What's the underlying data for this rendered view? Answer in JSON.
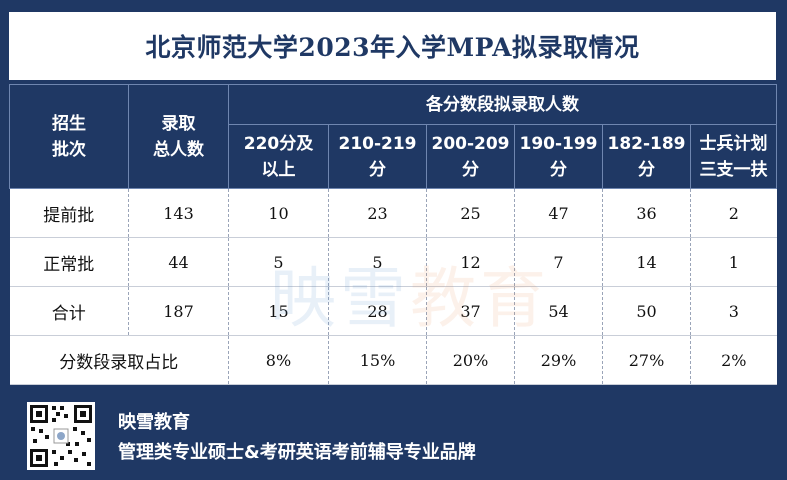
{
  "title": "北京师范大学2023年入学MPA拟录取情况",
  "table": {
    "col_batch_line1": "招生",
    "col_batch_line2": "批次",
    "col_total_line1": "录取",
    "col_total_line2": "总人数",
    "group_header": "各分数段拟录取人数",
    "score_cols": [
      {
        "line1": "220分及",
        "line2": "以上"
      },
      {
        "line1": "210-219",
        "line2": "分"
      },
      {
        "line1": "200-209",
        "line2": "分"
      },
      {
        "line1": "190-199",
        "line2": "分"
      },
      {
        "line1": "182-189",
        "line2": "分"
      },
      {
        "line1": "士兵计划",
        "line2": "三支一扶"
      }
    ],
    "rows": [
      {
        "name": "提前批",
        "total": "143",
        "values": [
          "10",
          "23",
          "25",
          "47",
          "36",
          "2"
        ]
      },
      {
        "name": "正常批",
        "total": "44",
        "values": [
          "5",
          "5",
          "12",
          "7",
          "14",
          "1"
        ]
      },
      {
        "name": "合计",
        "total": "187",
        "values": [
          "15",
          "28",
          "37",
          "54",
          "50",
          "3"
        ]
      }
    ],
    "ratio_label": "分数段录取占比",
    "ratios": [
      "8%",
      "15%",
      "20%",
      "29%",
      "27%",
      "2%"
    ]
  },
  "watermark": {
    "part1": "映雪",
    "part2": "教育"
  },
  "footer": {
    "brand": "映雪教育",
    "slogan": "管理类专业硕士&考研英语考前辅导专业品牌"
  },
  "colors": {
    "navy": "#1f3864",
    "white": "#ffffff"
  }
}
